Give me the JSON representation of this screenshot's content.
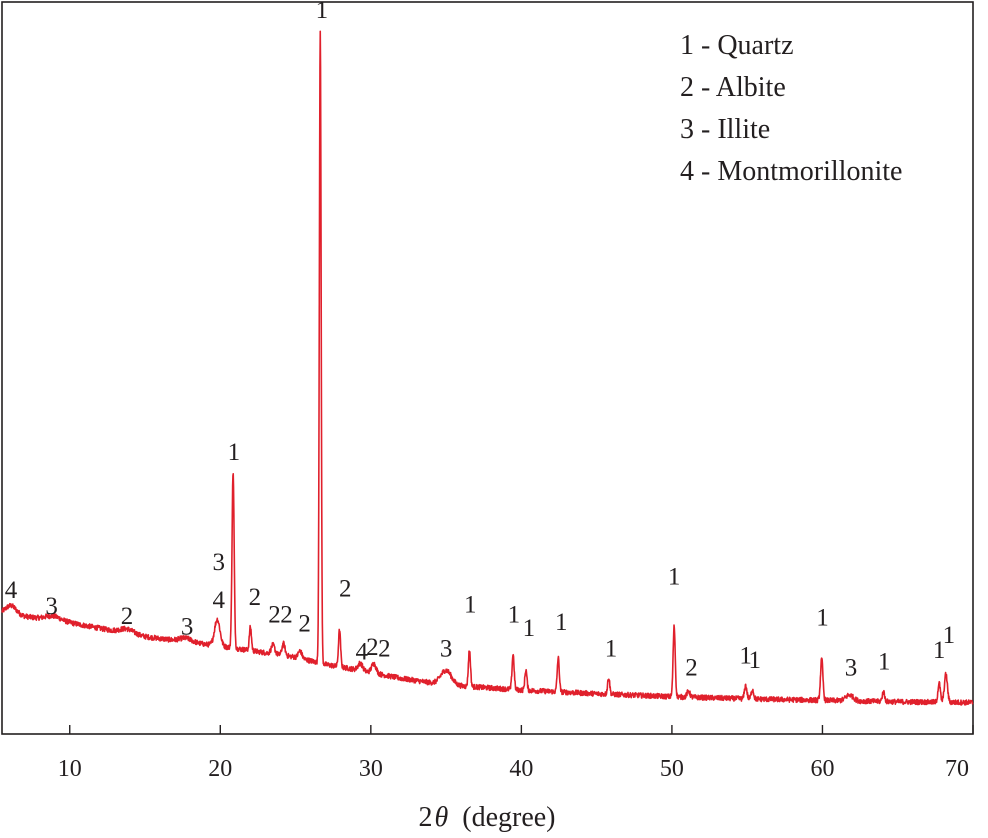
{
  "chart_data": {
    "type": "line",
    "title": "",
    "xlabel_prefix": "2",
    "xlabel_symbol": "θ",
    "xlabel_unit": "(degree)",
    "ylabel": "",
    "xlim": [
      5.5,
      70
    ],
    "ylim": [
      0,
      100
    ],
    "xticks": [
      10,
      20,
      30,
      40,
      50,
      60,
      70
    ],
    "grid": false,
    "legend_position": "top-right",
    "series_color": "#e0202c",
    "legend": [
      {
        "label": "1 - Quartz"
      },
      {
        "label": "2 - Albite"
      },
      {
        "label": "3 - Illite"
      },
      {
        "label": "4 - Montmorillonite"
      }
    ],
    "baseline": [
      [
        5.5,
        16.5
      ],
      [
        10,
        15.2
      ],
      [
        15,
        13.3
      ],
      [
        20,
        12.0
      ],
      [
        25,
        10.5
      ],
      [
        27,
        9.5
      ],
      [
        29,
        8.8
      ],
      [
        32,
        7.6
      ],
      [
        35,
        6.7
      ],
      [
        40,
        6.0
      ],
      [
        45,
        5.5
      ],
      [
        50,
        5.1
      ],
      [
        55,
        4.8
      ],
      [
        60,
        4.6
      ],
      [
        65,
        4.4
      ],
      [
        70,
        4.3
      ]
    ],
    "peaks": [
      {
        "x": 6.1,
        "height": 1.2,
        "width": 0.35
      },
      {
        "x": 8.9,
        "height": 0.6,
        "width": 0.5
      },
      {
        "x": 13.8,
        "height": 0.6,
        "width": 0.45
      },
      {
        "x": 17.7,
        "height": 0.5,
        "width": 0.4
      },
      {
        "x": 19.8,
        "height": 3.6,
        "width": 0.18
      },
      {
        "x": 20.85,
        "height": 24.0,
        "width": 0.07
      },
      {
        "x": 22.0,
        "height": 3.2,
        "width": 0.07
      },
      {
        "x": 23.5,
        "height": 1.2,
        "width": 0.12
      },
      {
        "x": 24.2,
        "height": 1.6,
        "width": 0.1
      },
      {
        "x": 25.3,
        "height": 1.0,
        "width": 0.12
      },
      {
        "x": 26.64,
        "height": 86.0,
        "width": 0.06
      },
      {
        "x": 27.92,
        "height": 5.0,
        "width": 0.07
      },
      {
        "x": 29.3,
        "height": 1.0,
        "width": 0.15
      },
      {
        "x": 30.2,
        "height": 1.3,
        "width": 0.15
      },
      {
        "x": 35.0,
        "height": 2.0,
        "width": 0.35
      },
      {
        "x": 36.55,
        "height": 5.0,
        "width": 0.07
      },
      {
        "x": 39.45,
        "height": 4.8,
        "width": 0.07
      },
      {
        "x": 40.3,
        "height": 2.8,
        "width": 0.07
      },
      {
        "x": 42.45,
        "height": 4.6,
        "width": 0.07
      },
      {
        "x": 45.8,
        "height": 2.3,
        "width": 0.07
      },
      {
        "x": 50.15,
        "height": 9.6,
        "width": 0.07
      },
      {
        "x": 51.1,
        "height": 0.8,
        "width": 0.1
      },
      {
        "x": 54.9,
        "height": 1.8,
        "width": 0.08
      },
      {
        "x": 55.35,
        "height": 1.3,
        "width": 0.08
      },
      {
        "x": 59.95,
        "height": 5.6,
        "width": 0.08
      },
      {
        "x": 61.8,
        "height": 0.8,
        "width": 0.25
      },
      {
        "x": 64.05,
        "height": 1.3,
        "width": 0.08
      },
      {
        "x": 67.75,
        "height": 2.6,
        "width": 0.08
      },
      {
        "x": 68.2,
        "height": 3.8,
        "width": 0.1
      }
    ],
    "annotations": [
      {
        "text": "4",
        "x": 6.1,
        "y": 18.6
      },
      {
        "text": "3",
        "x": 8.8,
        "y": 16.4
      },
      {
        "text": "2",
        "x": 13.8,
        "y": 15.0
      },
      {
        "text": "3",
        "x": 17.8,
        "y": 13.6
      },
      {
        "text": "4",
        "x": 19.9,
        "y": 17.2
      },
      {
        "text": "3",
        "x": 19.9,
        "y": 22.4
      },
      {
        "text": "1",
        "x": 20.9,
        "y": 37.4
      },
      {
        "text": "2",
        "x": 22.3,
        "y": 17.6
      },
      {
        "text": "2",
        "x": 23.6,
        "y": 15.2
      },
      {
        "text": "2",
        "x": 24.4,
        "y": 15.2
      },
      {
        "text": "2",
        "x": 25.6,
        "y": 14.0
      },
      {
        "text": "1",
        "x": 26.75,
        "y": 97.8
      },
      {
        "text": "2",
        "x": 28.3,
        "y": 18.8
      },
      {
        "text": "4",
        "x": 29.4,
        "y": 10.2
      },
      {
        "text": "2",
        "x": 30.1,
        "y": 10.8
      },
      {
        "text": "2",
        "x": 30.9,
        "y": 10.6
      },
      {
        "text": "3",
        "x": 35.0,
        "y": 10.6
      },
      {
        "text": "1",
        "x": 36.6,
        "y": 16.6
      },
      {
        "text": "1",
        "x": 39.5,
        "y": 15.2
      },
      {
        "text": "1",
        "x": 40.5,
        "y": 13.4
      },
      {
        "text": "1",
        "x": 42.65,
        "y": 14.2
      },
      {
        "text": "1",
        "x": 45.95,
        "y": 10.6
      },
      {
        "text": "1",
        "x": 50.15,
        "y": 20.4
      },
      {
        "text": "2",
        "x": 51.3,
        "y": 8.0
      },
      {
        "text": "1",
        "x": 54.9,
        "y": 9.6
      },
      {
        "text": "1",
        "x": 55.5,
        "y": 9.0
      },
      {
        "text": "1",
        "x": 60.0,
        "y": 14.8
      },
      {
        "text": "3",
        "x": 61.9,
        "y": 8.0
      },
      {
        "text": "1",
        "x": 64.1,
        "y": 8.8
      },
      {
        "text": "1",
        "x": 67.75,
        "y": 10.4
      },
      {
        "text": "1",
        "x": 68.4,
        "y": 12.4
      }
    ]
  }
}
